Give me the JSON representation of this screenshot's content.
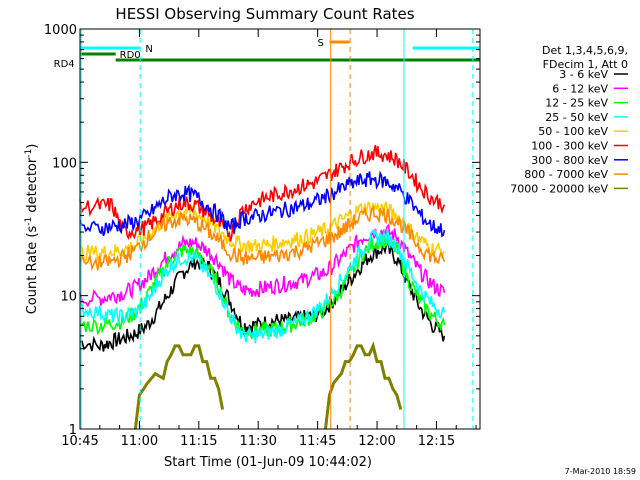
{
  "chart_data": {
    "type": "line",
    "title": "HESSI Observing Summary Count Rates",
    "xlabel": "Start Time (01-Jun-09 10:44:02)",
    "ylabel_main": "Count Rate (s",
    "ylabel_sup1": "-1",
    "ylabel_mid": " detector",
    "ylabel_sup2": "-1",
    "ylabel_end": ")",
    "y_scale": "log",
    "ylim": [
      1,
      1000
    ],
    "xlim_minutes": [
      645,
      746
    ],
    "x_ticks": [
      {
        "minute": 645,
        "label": "10:45"
      },
      {
        "minute": 660,
        "label": "11:00"
      },
      {
        "minute": 675,
        "label": "11:15"
      },
      {
        "minute": 690,
        "label": "11:30"
      },
      {
        "minute": 705,
        "label": "11:45"
      },
      {
        "minute": 720,
        "label": "12:00"
      },
      {
        "minute": 735,
        "label": "12:15"
      }
    ],
    "y_ticks": [
      {
        "value": 10,
        "label": "10"
      },
      {
        "value": 100,
        "label": "100"
      },
      {
        "value": 1000,
        "label": "1000"
      }
    ],
    "legend": {
      "position": "right",
      "header": [
        "Det 1,3,4,5,6,9,",
        "FDecim 1, Att 0"
      ]
    },
    "series": [
      {
        "name": "3 - 6 keV",
        "color": "#000000",
        "x": [
          645,
          650,
          653,
          656,
          659,
          662,
          665,
          668,
          671,
          674,
          677,
          680,
          683,
          686,
          689,
          692,
          695,
          698,
          701,
          704,
          707,
          710,
          713,
          716,
          719,
          722,
          725,
          728,
          731,
          734,
          737
        ],
        "y": [
          4.5,
          4.2,
          4.5,
          4.8,
          5.2,
          6,
          8,
          11,
          15,
          18,
          17,
          13,
          9,
          6,
          6,
          6.3,
          6.5,
          6.5,
          6.8,
          7,
          8,
          10,
          13,
          17,
          21,
          23,
          19,
          12,
          8,
          6,
          5
        ]
      },
      {
        "name": "6 - 12 keV",
        "color": "#ff00ff",
        "x": [
          645,
          650,
          653,
          656,
          659,
          662,
          665,
          668,
          671,
          674,
          677,
          680,
          683,
          686,
          689,
          692,
          695,
          698,
          701,
          704,
          707,
          710,
          713,
          716,
          719,
          722,
          725,
          728,
          731,
          734,
          737
        ],
        "y": [
          9.5,
          9.5,
          10,
          10.5,
          11.5,
          13.5,
          17,
          21,
          24.5,
          25,
          22,
          18,
          13,
          11,
          11,
          11.5,
          12,
          12.5,
          13,
          14,
          15,
          18,
          22,
          27,
          30,
          30.5,
          28,
          20,
          15,
          12,
          10.5
        ]
      },
      {
        "name": "12 - 25 keV",
        "color": "#00ff00",
        "x": [
          645,
          650,
          653,
          656,
          659,
          662,
          665,
          668,
          671,
          674,
          677,
          680,
          683,
          686,
          689,
          692,
          695,
          698,
          701,
          704,
          707,
          710,
          713,
          716,
          719,
          722,
          725,
          728,
          731,
          734,
          737
        ],
        "y": [
          6,
          6,
          6.2,
          6.5,
          7.5,
          10,
          14,
          19,
          22,
          21,
          17,
          12,
          7,
          5.5,
          5.5,
          5.5,
          5.7,
          6,
          6.5,
          7,
          8,
          10,
          14,
          20,
          25,
          26,
          22,
          13,
          9,
          7,
          6
        ]
      },
      {
        "name": "25 - 50 keV",
        "color": "#00ffff",
        "x": [
          645,
          650,
          653,
          656,
          659,
          662,
          665,
          668,
          671,
          674,
          677,
          680,
          683,
          686,
          689,
          692,
          695,
          698,
          701,
          704,
          707,
          710,
          713,
          716,
          719,
          722,
          725,
          728,
          731,
          734,
          737
        ],
        "y": [
          8,
          7.5,
          7,
          7,
          7.5,
          9,
          13,
          17,
          19.5,
          19,
          15,
          11,
          7,
          5,
          5,
          5.2,
          5.5,
          6,
          6.5,
          7.5,
          9,
          12,
          16,
          22,
          27,
          27.5,
          24,
          16,
          11,
          8.5,
          7.5
        ]
      },
      {
        "name": "50 - 100 keV",
        "color": "#ffcc00",
        "x": [
          645,
          650,
          653,
          656,
          659,
          662,
          665,
          668,
          671,
          674,
          677,
          680,
          683,
          686,
          689,
          692,
          695,
          698,
          701,
          704,
          707,
          710,
          713,
          716,
          719,
          722,
          725,
          728,
          731,
          734,
          737
        ],
        "y": [
          21,
          21,
          21.5,
          22,
          24,
          28,
          34,
          40,
          43,
          42,
          37,
          31,
          26,
          24,
          23.5,
          24,
          25,
          26,
          27,
          29,
          31,
          35,
          40,
          45,
          46,
          45,
          40,
          32,
          26,
          22.5,
          21.5
        ]
      },
      {
        "name": "100 - 300 keV",
        "color": "#ff0000",
        "x": [
          645,
          650,
          653,
          656,
          659,
          662,
          665,
          668,
          671,
          674,
          677,
          680,
          683,
          686,
          689,
          692,
          695,
          698,
          701,
          704,
          707,
          710,
          713,
          716,
          719,
          722,
          725,
          728,
          731,
          734,
          737
        ],
        "y": [
          46,
          47,
          48,
          30,
          31,
          33,
          38,
          45,
          50,
          48,
          42,
          35,
          29,
          44,
          50,
          54,
          58,
          62,
          66,
          70,
          78,
          88,
          100,
          110,
          118,
          115,
          105,
          85,
          65,
          53,
          48
        ]
      },
      {
        "name": "300 - 800 keV",
        "color": "#0000ff",
        "x": [
          645,
          650,
          653,
          656,
          659,
          662,
          665,
          668,
          671,
          674,
          677,
          680,
          683,
          686,
          689,
          692,
          695,
          698,
          701,
          704,
          707,
          710,
          713,
          716,
          719,
          722,
          725,
          728,
          731,
          734,
          737
        ],
        "y": [
          32,
          32,
          33,
          34,
          36,
          40,
          48,
          56,
          59,
          56,
          48,
          40,
          32,
          38,
          39,
          41,
          43,
          45,
          47,
          50,
          55,
          61,
          68,
          73,
          75,
          72,
          65,
          52,
          40,
          33,
          31
        ]
      },
      {
        "name": "800 - 7000 keV",
        "color": "#ff8800",
        "x": [
          645,
          650,
          653,
          656,
          659,
          662,
          665,
          668,
          671,
          674,
          677,
          680,
          683,
          686,
          689,
          692,
          695,
          698,
          701,
          704,
          707,
          710,
          713,
          716,
          719,
          722,
          725,
          728,
          731,
          734,
          737
        ],
        "y": [
          17.5,
          17.5,
          18,
          19.5,
          22,
          27,
          32,
          36,
          38,
          36,
          31,
          26,
          21,
          19,
          19,
          19.5,
          20,
          21,
          22,
          24,
          26,
          29,
          34,
          39,
          42,
          41,
          37,
          29,
          23,
          19.5,
          18
        ]
      },
      {
        "name": "7000 - 20000 keV",
        "color": "#808000",
        "x": [
          659,
          660,
          662,
          664,
          666,
          667,
          668,
          669,
          670,
          671,
          672,
          673,
          674,
          675,
          676,
          677,
          678,
          679,
          680,
          681
        ],
        "y": [
          1,
          1.8,
          2.2,
          2.6,
          2.4,
          3.2,
          3.6,
          4.2,
          4.2,
          3.6,
          3.6,
          3.6,
          4.2,
          4.2,
          3.2,
          3.2,
          2.4,
          2.4,
          2.0,
          1.4
        ]
      },
      {
        "name": "7000 - 20000 keV (b)",
        "color": "#808000",
        "x": [
          707,
          708,
          709,
          710,
          711,
          712,
          713,
          714,
          715,
          716,
          717,
          718,
          719,
          720,
          721,
          722,
          723,
          724,
          725,
          726
        ],
        "y": [
          1,
          1.8,
          2.2,
          2.4,
          2.6,
          3.2,
          3.2,
          3.6,
          4.2,
          4.2,
          3.6,
          3.6,
          4.2,
          3.2,
          3.2,
          2.4,
          2.4,
          2.0,
          1.8,
          1.4
        ]
      }
    ],
    "flag_bars": [
      {
        "label": "N",
        "color": "#00ffff",
        "segments": [
          [
            645,
            660
          ],
          [
            729,
            746
          ]
        ],
        "level": 1
      },
      {
        "label": "RD0",
        "color": "#008000",
        "segments": [
          [
            645,
            654
          ]
        ],
        "level": 2
      },
      {
        "label": "RD4",
        "color": "#008000",
        "segments": [
          [
            654,
            683
          ],
          [
            683,
            746
          ]
        ],
        "level": 3
      },
      {
        "label": "S",
        "color": "#ff8800",
        "segments": [
          [
            708,
            713
          ]
        ],
        "level": 0
      }
    ],
    "vertical_lines": [
      {
        "minute": 645.3,
        "color": "#00ffff",
        "style": "solid"
      },
      {
        "minute": 660.2,
        "color": "#00ffff",
        "style": "dashed"
      },
      {
        "minute": 708.3,
        "color": "#ff8800",
        "style": "solid"
      },
      {
        "minute": 713.2,
        "color": "#ff8800",
        "style": "dashed"
      },
      {
        "minute": 726.8,
        "color": "#00ffff",
        "style": "solid"
      },
      {
        "minute": 744.2,
        "color": "#00ffff",
        "style": "dashed"
      }
    ],
    "footer_date": "7-Mar-2010 18:59"
  }
}
